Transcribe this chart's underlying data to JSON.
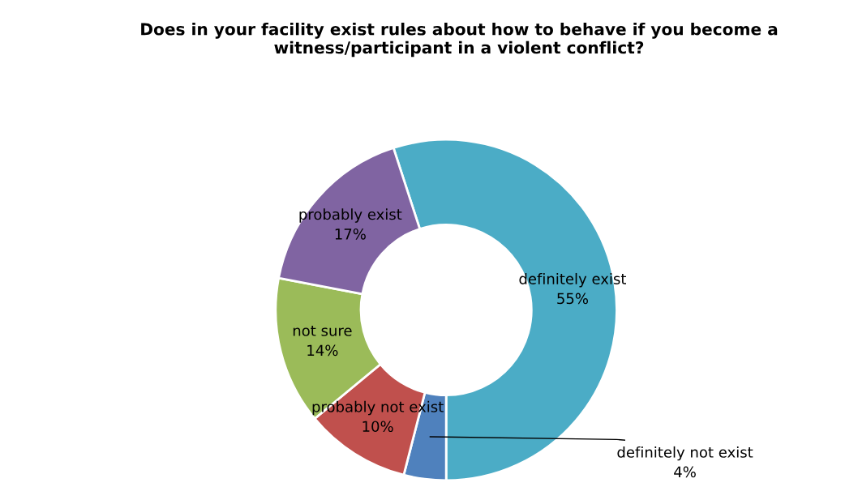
{
  "chart_data": {
    "type": "donut",
    "title": "Does in your facility exist rules about how to behave if you become a witness/participant in a violent conflict?",
    "categories": [
      "definitely exist",
      "definitely not exist",
      "probably not exist",
      "not sure",
      "probably exist"
    ],
    "values": [
      55,
      4,
      10,
      14,
      17
    ],
    "colors": [
      "#4bacc6",
      "#4f81bd",
      "#c0504d",
      "#9bbb59",
      "#8064a2"
    ],
    "value_labels": [
      "55%",
      "4%",
      "10%",
      "14%",
      "17%"
    ],
    "legend": false
  }
}
